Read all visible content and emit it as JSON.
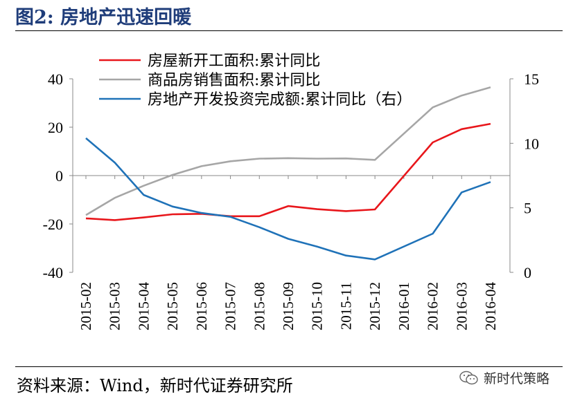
{
  "figure": {
    "title": "图2:    房地产迅速回暖",
    "source": "资料来源：Wind，新时代证券研究所",
    "watermark": "新时代策略"
  },
  "colors": {
    "title": "#1f3d7a",
    "series_red": "#e8161b",
    "series_gray": "#a6a6a6",
    "series_blue": "#1f72b8"
  },
  "chart_data": {
    "type": "line",
    "categories": [
      "2015-02",
      "2015-03",
      "2015-04",
      "2015-05",
      "2015-06",
      "2015-07",
      "2015-08",
      "2015-09",
      "2015-10",
      "2015-11",
      "2015-12",
      "2016-01",
      "2016-02",
      "2016-03",
      "2016-04"
    ],
    "y_left": {
      "ylim": [
        -40,
        40
      ],
      "ticks": [
        40,
        20,
        0,
        -20,
        -40
      ]
    },
    "y_right": {
      "ylim": [
        0,
        15
      ],
      "ticks": [
        15,
        10,
        5,
        0
      ]
    },
    "grid": false,
    "legend_position": "top",
    "series": [
      {
        "name": "房屋新开工面积:累计同比",
        "axis": "left",
        "color": "#e8161b",
        "values": [
          -17.7,
          -18.4,
          -17.3,
          -16.0,
          -15.8,
          -16.8,
          -16.8,
          -12.6,
          -13.9,
          -14.7,
          -14.0,
          null,
          13.7,
          19.2,
          21.4
        ]
      },
      {
        "name": "商品房销售面积:累计同比",
        "axis": "left",
        "color": "#a6a6a6",
        "values": [
          -16.3,
          -9.2,
          -4.2,
          0.3,
          3.9,
          5.9,
          7.0,
          7.2,
          7.0,
          7.1,
          6.5,
          null,
          28.2,
          33.1,
          36.5
        ]
      },
      {
        "name": "房地产开发投资完成额:累计同比（右）",
        "axis": "right",
        "color": "#1f72b8",
        "values": [
          10.4,
          8.5,
          6.0,
          5.1,
          4.6,
          4.3,
          3.5,
          2.6,
          2.0,
          1.3,
          1.0,
          null,
          3.0,
          6.2,
          7.0
        ]
      }
    ]
  }
}
